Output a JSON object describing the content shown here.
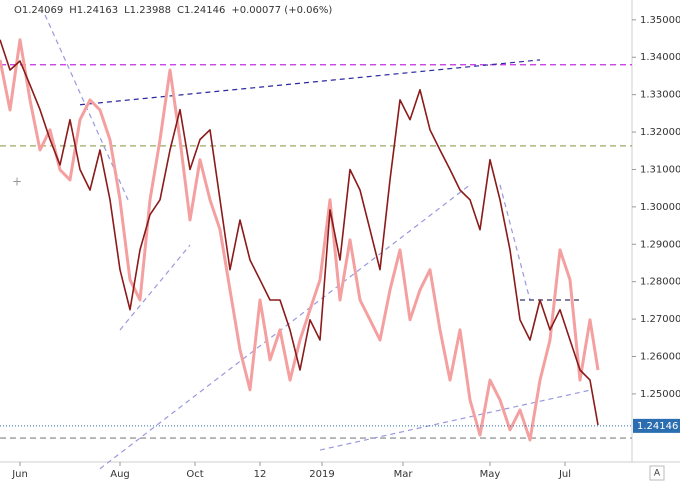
{
  "chart_data": {
    "type": "line",
    "header": [
      "O1.24069",
      "H1.24163",
      "L1.23988",
      "C1.24146",
      "+0.00077 (+0.06%)"
    ],
    "x": [
      0,
      1,
      2,
      3,
      4,
      5,
      6,
      7,
      8,
      9,
      10,
      11,
      12,
      13,
      14,
      15,
      16,
      17,
      18,
      19,
      20,
      21,
      22,
      23,
      24,
      25,
      26,
      27,
      28,
      29,
      30,
      31,
      32,
      33,
      34,
      35,
      36,
      37,
      38,
      39,
      40,
      41,
      42,
      43,
      44,
      45,
      46,
      47,
      48,
      49,
      50,
      51,
      52,
      53,
      54,
      55,
      56,
      57,
      58,
      59,
      59.8
    ],
    "series": [
      {
        "color": "#f4a0a0",
        "values": [
          1.3393,
          1.3259,
          1.3447,
          1.3286,
          1.3152,
          1.3206,
          1.3099,
          1.3072,
          1.3233,
          1.3286,
          1.3259,
          1.3179,
          1.3019,
          1.2805,
          1.2751,
          1.3019,
          1.3179,
          1.3366,
          1.3179,
          1.2965,
          1.3126,
          1.3019,
          1.2939,
          1.2778,
          1.2618,
          1.2511,
          1.2751,
          1.2591,
          1.2671,
          1.2537,
          1.2644,
          1.2725,
          1.2805,
          1.3019,
          1.2751,
          1.2912,
          1.2751,
          1.2698,
          1.2644,
          1.2778,
          1.2885,
          1.2698,
          1.2778,
          1.2832,
          1.2671,
          1.2537,
          1.2671,
          1.2484,
          1.239,
          1.2537,
          1.2484,
          1.2404,
          1.2457,
          1.2377,
          1.2537,
          1.2644,
          1.2885,
          1.2805,
          1.2537,
          1.2698,
          1.2564
        ]
      },
      {
        "color": "#8b1a1a",
        "values": [
          1.3447,
          1.3366,
          1.339,
          1.3326,
          1.326,
          1.318,
          1.3112,
          1.3233,
          1.31,
          1.3045,
          1.3152,
          1.3019,
          1.2832,
          1.2725,
          1.2885,
          1.2979,
          1.3019,
          1.3152,
          1.326,
          1.31,
          1.318,
          1.3206,
          1.3019,
          1.2832,
          1.2965,
          1.2858,
          1.2805,
          1.2751,
          1.2751,
          1.2671,
          1.2564,
          1.2698,
          1.2644,
          1.2992,
          1.2858,
          1.31,
          1.3045,
          1.2939,
          1.2832,
          1.3072,
          1.3286,
          1.3233,
          1.3313,
          1.3206,
          1.3152,
          1.31,
          1.3045,
          1.3019,
          1.2939,
          1.3126,
          1.3019,
          1.2885,
          1.2698,
          1.2644,
          1.2751,
          1.2671,
          1.2725,
          1.2644,
          1.2564,
          1.2537,
          1.2417
        ]
      }
    ],
    "xlim": [
      0,
      63.2
    ],
    "xticks": [
      {
        "value": 2,
        "label": "Jun"
      },
      {
        "value": 12,
        "label": "Aug"
      },
      {
        "value": 19.5,
        "label": "Oct"
      },
      {
        "value": 26,
        "label": "12"
      },
      {
        "value": 32.2,
        "label": "2019"
      },
      {
        "value": 40.3,
        "label": "Mar"
      },
      {
        "value": 49,
        "label": "May"
      },
      {
        "value": 56.5,
        "label": "Jul"
      }
    ],
    "ylim": [
      1.2318,
      1.3553
    ],
    "yticks": [
      {
        "value": 1.35,
        "label": "1.35000"
      },
      {
        "value": 1.34,
        "label": "1.34000"
      },
      {
        "value": 1.33,
        "label": "1.33000"
      },
      {
        "value": 1.32,
        "label": "1.32000"
      },
      {
        "value": 1.31,
        "label": "1.31000"
      },
      {
        "value": 1.3,
        "label": "1.30000"
      },
      {
        "value": 1.29,
        "label": "1.29000"
      },
      {
        "value": 1.28,
        "label": "1.28000"
      },
      {
        "value": 1.27,
        "label": "1.27000"
      },
      {
        "value": 1.26,
        "label": "1.26000"
      },
      {
        "value": 1.25,
        "label": "1.25000"
      }
    ],
    "reference_lines": [
      {
        "value": 1.338,
        "color": "#c030e0"
      },
      {
        "value": 1.3163,
        "color": "#9aaa60"
      },
      {
        "value": 1.2382,
        "color": "#999999"
      }
    ],
    "trendlines": [
      {
        "x": [
          8,
          54
        ],
        "values": [
          1.3273,
          1.3393
        ],
        "color": "#2a2aa0"
      },
      {
        "x": [
          4.5,
          12.8
        ],
        "values": [
          1.3513,
          1.3019
        ],
        "color": "#9999dd"
      },
      {
        "x": [
          12,
          19
        ],
        "values": [
          1.2671,
          1.2898
        ],
        "color": "#9999dd"
      },
      {
        "x": [
          10,
          47
        ],
        "values": [
          1.23,
          1.3059
        ],
        "color": "#9999dd"
      },
      {
        "x": [
          50,
          53
        ],
        "values": [
          1.3059,
          1.2751
        ],
        "color": "#9999dd"
      },
      {
        "x": [
          52,
          58
        ],
        "values": [
          1.2751,
          1.2751
        ],
        "color": "#333366"
      },
      {
        "x": [
          32,
          59
        ],
        "values": [
          1.235,
          1.251
        ],
        "color": "#9999dd"
      }
    ],
    "last_price": {
      "value": 1.24146,
      "label": "1.24146"
    }
  }
}
